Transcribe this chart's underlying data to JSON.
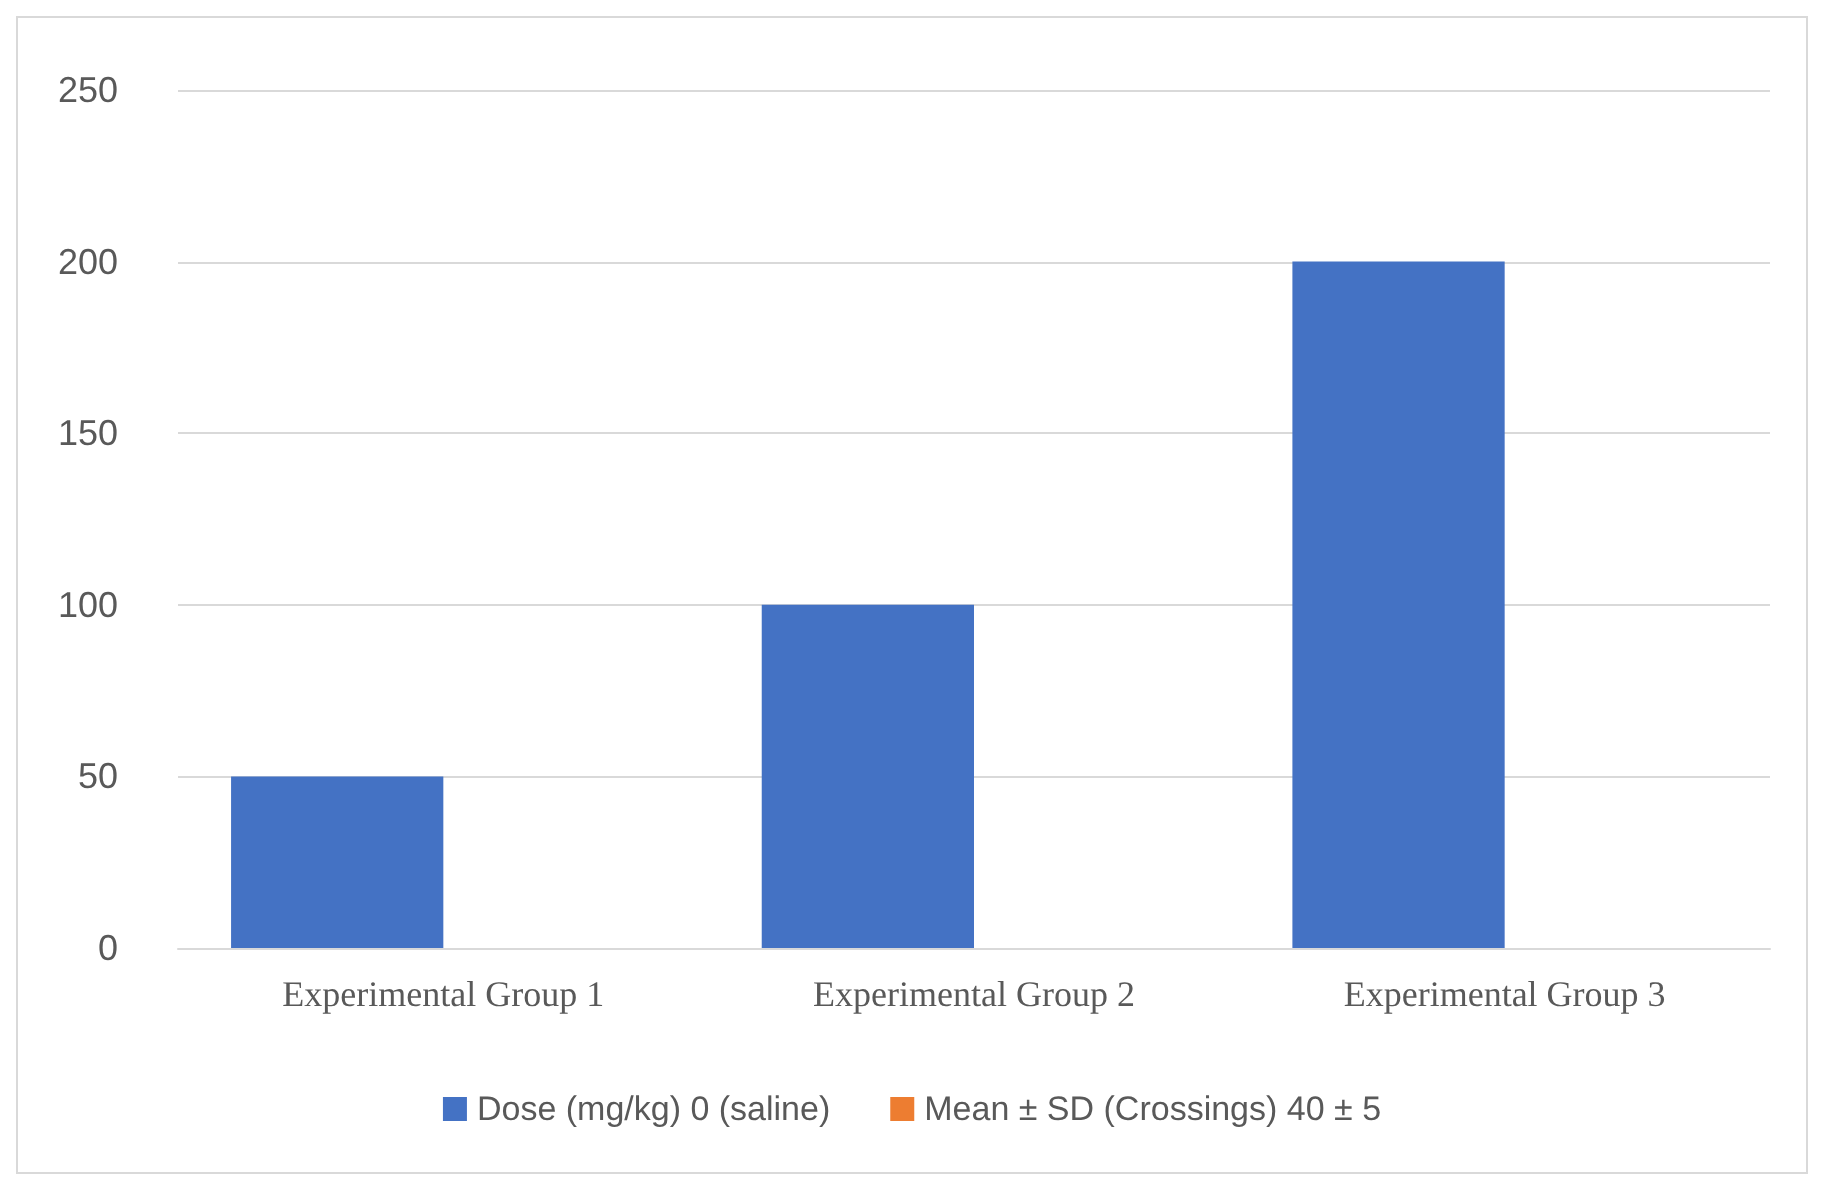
{
  "chart_data": {
    "type": "bar",
    "categories": [
      "Experimental Group 1",
      "Experimental Group 2",
      "Experimental Group 3"
    ],
    "series": [
      {
        "name": "Dose (mg/kg) 0 (saline)",
        "color": "#4472c4",
        "values": [
          50,
          100,
          200
        ]
      },
      {
        "name": "Mean ± SD (Crossings) 40 ± 5",
        "color": "#ed7d31",
        "values": [
          null,
          null,
          null
        ]
      }
    ],
    "ylim": [
      0,
      250
    ],
    "yticks": [
      0,
      50,
      100,
      150,
      200,
      250
    ],
    "grid": "y",
    "legend": "bottom"
  }
}
